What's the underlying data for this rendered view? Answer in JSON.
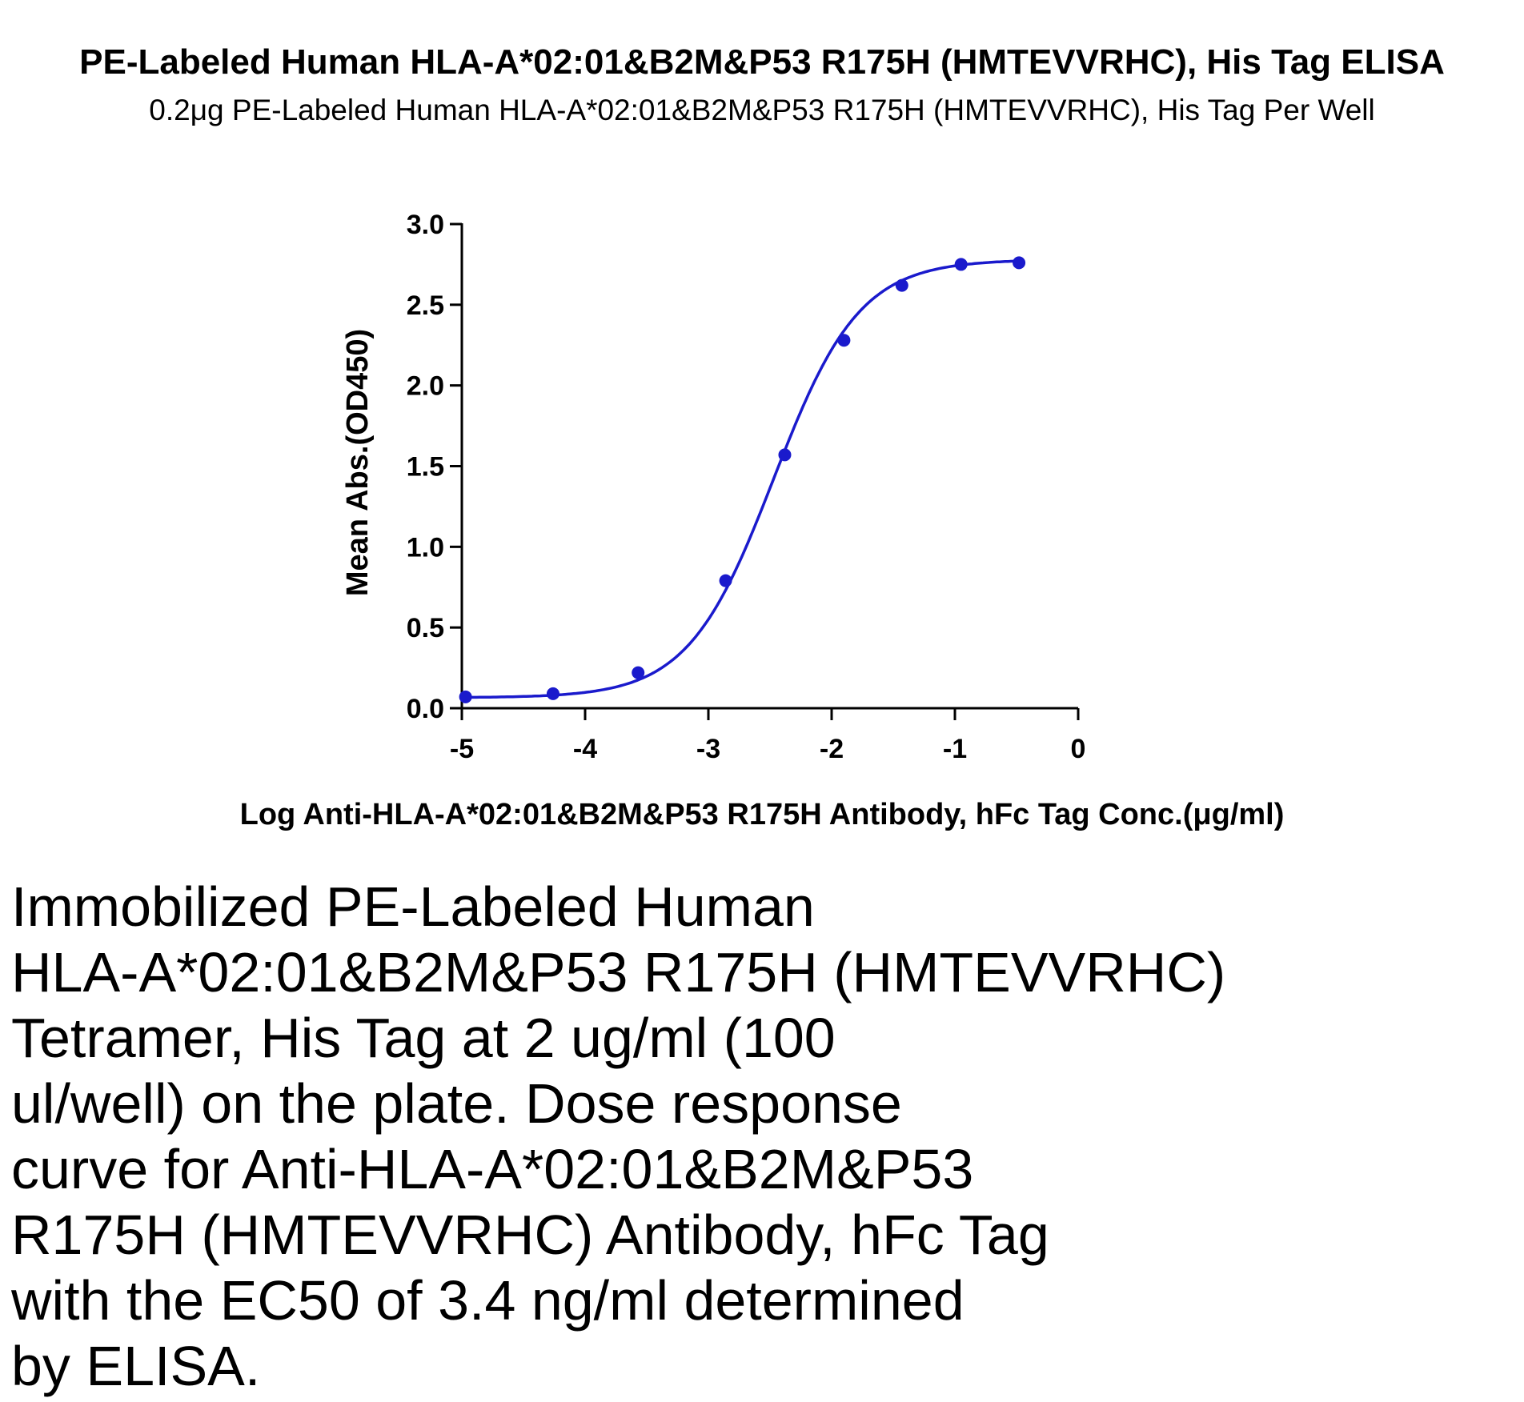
{
  "chart_data": {
    "type": "scatter",
    "title": "PE-Labeled Human HLA-A*02:01&B2M&P53 R175H (HMTEVVRHC), His Tag ELISA",
    "subtitle": "0.2μg PE-Labeled Human HLA-A*02:01&B2M&P53 R175H (HMTEVVRHC), His Tag Per Well",
    "xlabel": "Log Anti-HLA-A*02:01&B2M&P53 R175H Antibody, hFc Tag Conc.(μg/ml)",
    "ylabel": "Mean Abs.(OD450)",
    "xlim": [
      -5,
      0
    ],
    "ylim": [
      0,
      3.0
    ],
    "xticks": [
      "-5",
      "-4",
      "-3",
      "-2",
      "-1",
      "0"
    ],
    "yticks": [
      "0.0",
      "0.5",
      "1.0",
      "1.5",
      "2.0",
      "2.5",
      "3.0"
    ],
    "series": [
      {
        "color": "#1a1acc",
        "fit": "4PL",
        "x": [
          -4.97,
          -4.26,
          -3.57,
          -2.86,
          -2.38,
          -1.9,
          -1.43,
          -0.95,
          -0.48
        ],
        "y": [
          0.07,
          0.09,
          0.22,
          0.79,
          1.57,
          2.28,
          2.62,
          2.75,
          2.76
        ]
      }
    ],
    "grid": false
  },
  "caption": [
    "Immobilized PE-Labeled Human",
    "HLA-A*02:01&B2M&P53 R175H (HMTEVVRHC)",
    "Tetramer, His Tag at 2 ug/ml (100",
    "ul/well) on the plate. Dose response",
    "curve for Anti-HLA-A*02:01&B2M&P53",
    "R175H (HMTEVVRHC) Antibody, hFc Tag",
    "with the EC50 of 3.4 ng/ml determined",
    "by ELISA."
  ]
}
